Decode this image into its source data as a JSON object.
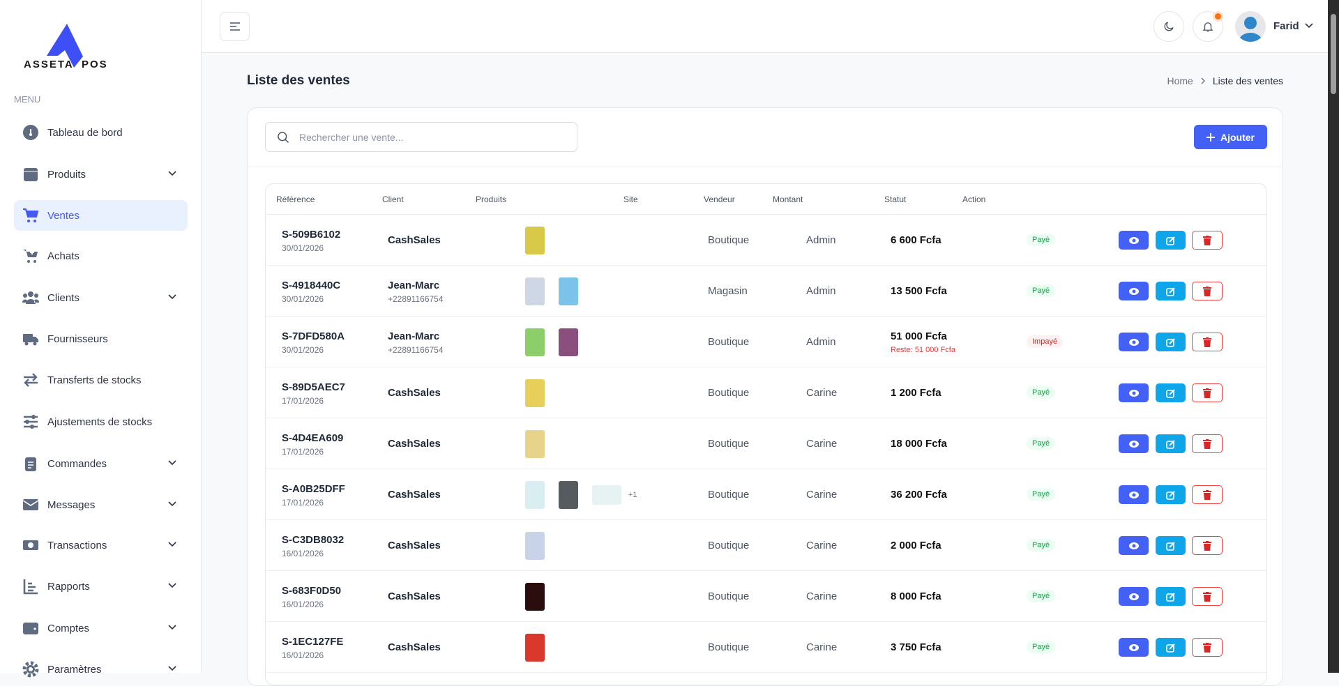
{
  "brand": {
    "logo_text_left": "ASSETA",
    "logo_text_right": "POS",
    "accent": "#4361f5"
  },
  "sidebar": {
    "menu_label": "MENU",
    "items": [
      {
        "label": "Tableau de bord",
        "icon": "dashboard-icon",
        "chevron": false
      },
      {
        "label": "Produits",
        "icon": "box-icon",
        "chevron": true
      },
      {
        "label": "Ventes",
        "icon": "cart-icon",
        "chevron": false,
        "active": true
      },
      {
        "label": "Achats",
        "icon": "cart-plus-icon",
        "chevron": false
      },
      {
        "label": "Clients",
        "icon": "users-icon",
        "chevron": true
      },
      {
        "label": "Fournisseurs",
        "icon": "truck-icon",
        "chevron": false
      },
      {
        "label": "Transferts de stocks",
        "icon": "transfer-icon",
        "chevron": false
      },
      {
        "label": "Ajustements de stocks",
        "icon": "sliders-icon",
        "chevron": false
      },
      {
        "label": "Commandes",
        "icon": "clipboard-icon",
        "chevron": true
      },
      {
        "label": "Messages",
        "icon": "envelope-icon",
        "chevron": true
      },
      {
        "label": "Transactions",
        "icon": "money-icon",
        "chevron": true
      },
      {
        "label": "Rapports",
        "icon": "chart-icon",
        "chevron": true
      },
      {
        "label": "Comptes",
        "icon": "wallet-icon",
        "chevron": true
      },
      {
        "label": "Paramètres",
        "icon": "gear-icon",
        "chevron": true
      }
    ]
  },
  "topbar": {
    "user_name": "Farid"
  },
  "page": {
    "title": "Liste des ventes",
    "breadcrumb": [
      "Home",
      "Liste des ventes"
    ]
  },
  "search": {
    "placeholder": "Rechercher une vente..."
  },
  "toolbar": {
    "add_label": "Ajouter"
  },
  "table": {
    "headers": [
      "Référence",
      "Client",
      "Produits",
      "Site",
      "Vendeur",
      "Montant",
      "Statut",
      "Action"
    ],
    "rows": [
      {
        "ref": "S-509B6102",
        "date": "30/01/2026",
        "client": "CashSales",
        "phone": "",
        "products": [
          "#d8c94a"
        ],
        "more": "",
        "site": "Boutique",
        "vendeur": "Admin",
        "montant": "6 600 Fcfa",
        "reste": "",
        "statut": "Payé",
        "paid": true
      },
      {
        "ref": "S-4918440C",
        "date": "30/01/2026",
        "client": "Jean-Marc",
        "phone": "+22891166754",
        "products": [
          "#cfd6e4",
          "#7cc3ea"
        ],
        "more": "",
        "site": "Magasin",
        "vendeur": "Admin",
        "montant": "13 500 Fcfa",
        "reste": "",
        "statut": "Payé",
        "paid": true
      },
      {
        "ref": "S-7DFD580A",
        "date": "30/01/2026",
        "client": "Jean-Marc",
        "phone": "+22891166754",
        "products": [
          "#8ccf6a",
          "#8a4f7d"
        ],
        "more": "",
        "site": "Boutique",
        "vendeur": "Admin",
        "montant": "51 000 Fcfa",
        "reste": "Reste: 51 000 Fcfa",
        "statut": "Impayé",
        "paid": false
      },
      {
        "ref": "S-89D5AEC7",
        "date": "17/01/2026",
        "client": "CashSales",
        "phone": "",
        "products": [
          "#e6cf5a"
        ],
        "more": "",
        "site": "Boutique",
        "vendeur": "Carine",
        "montant": "1 200 Fcfa",
        "reste": "",
        "statut": "Payé",
        "paid": true
      },
      {
        "ref": "S-4D4EA609",
        "date": "17/01/2026",
        "client": "CashSales",
        "phone": "",
        "products": [
          "#e8d38a"
        ],
        "more": "",
        "site": "Boutique",
        "vendeur": "Carine",
        "montant": "18 000 Fcfa",
        "reste": "",
        "statut": "Payé",
        "paid": true
      },
      {
        "ref": "S-A0B25DFF",
        "date": "17/01/2026",
        "client": "CashSales",
        "phone": "",
        "products": [
          "#d9eef0",
          "#555b5e",
          "#e7f3f3"
        ],
        "more": "+1",
        "site": "Boutique",
        "vendeur": "Carine",
        "montant": "36 200 Fcfa",
        "reste": "",
        "statut": "Payé",
        "paid": true
      },
      {
        "ref": "S-C3DB8032",
        "date": "16/01/2026",
        "client": "CashSales",
        "phone": "",
        "products": [
          "#c9d3e8"
        ],
        "more": "",
        "site": "Boutique",
        "vendeur": "Carine",
        "montant": "2 000 Fcfa",
        "reste": "",
        "statut": "Payé",
        "paid": true
      },
      {
        "ref": "S-683F0D50",
        "date": "16/01/2026",
        "client": "CashSales",
        "phone": "",
        "products": [
          "#2a0d0d"
        ],
        "more": "",
        "site": "Boutique",
        "vendeur": "Carine",
        "montant": "8 000 Fcfa",
        "reste": "",
        "statut": "Payé",
        "paid": true
      },
      {
        "ref": "S-1EC127FE",
        "date": "16/01/2026",
        "client": "CashSales",
        "phone": "",
        "products": [
          "#d8392b"
        ],
        "more": "",
        "site": "Boutique",
        "vendeur": "Carine",
        "montant": "3 750 Fcfa",
        "reste": "",
        "statut": "Payé",
        "paid": true
      }
    ]
  }
}
